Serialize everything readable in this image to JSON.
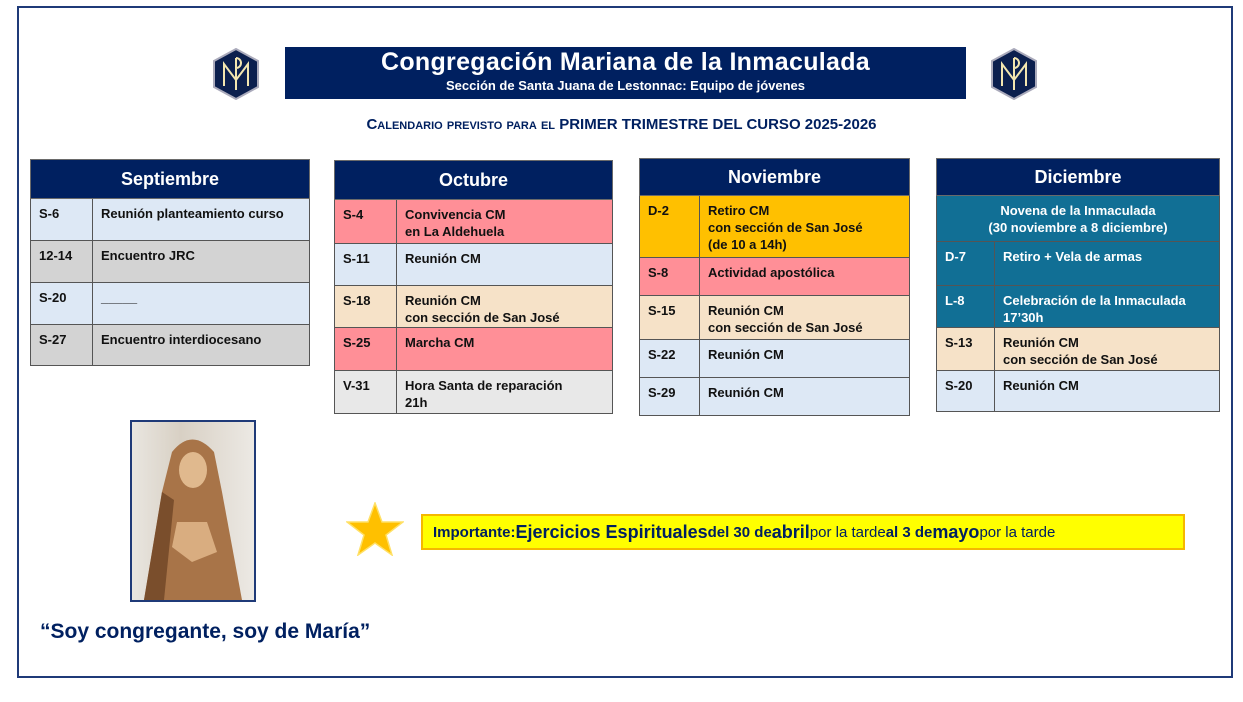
{
  "header": {
    "title": "Congregación Mariana de la Inmaculada",
    "subtitle": "Sección de Santa Juana de Lestonnac: Equipo de jóvenes",
    "calendar_prefix": "Calendario previsto para el",
    "calendar_main": "PRIMER TRIMESTRE DEL CURSO 2025-2026"
  },
  "colors": {
    "navy": "#002060",
    "teal": "#116f95",
    "pink": "#ff8f97",
    "peach": "#f6e2c8",
    "light_blue": "#dde8f5",
    "grey": "#d3d3d3",
    "orange": "#ffc000",
    "yellow": "#ffff00"
  },
  "months": [
    {
      "name": "Septiembre",
      "rows": [
        {
          "date": "S-6",
          "event": "Reunión planteamiento curso",
          "color": "lb"
        },
        {
          "date": "12-14",
          "event": "Encuentro JRC",
          "color": "gr"
        },
        {
          "date": "S-20",
          "event": "_____",
          "color": "lb"
        },
        {
          "date": "S-27",
          "event": "Encuentro interdiocesano",
          "color": "gr"
        }
      ]
    },
    {
      "name": "Octubre",
      "rows": [
        {
          "date": "S-4",
          "event": "Convivencia CM\nen  La Aldehuela",
          "color": "pk"
        },
        {
          "date": "S-11",
          "event": "Reunión CM",
          "color": "lb"
        },
        {
          "date": "S-18",
          "event": "Reunión CM\ncon sección de San José",
          "color": "pe"
        },
        {
          "date": "S-25",
          "event": "Marcha CM",
          "color": "pk"
        },
        {
          "date": "V-31",
          "event": "Hora Santa de reparación\n21h",
          "color": "lg"
        }
      ]
    },
    {
      "name": "Noviembre",
      "rows": [
        {
          "date": "D-2",
          "event": "Retiro CM\ncon sección de San José\n(de 10 a 14h)",
          "color": "or"
        },
        {
          "date": "S-8",
          "event": "Actividad apostólica",
          "color": "pk"
        },
        {
          "date": "S-15",
          "event": "Reunión CM\ncon sección de San José",
          "color": "pe"
        },
        {
          "date": "S-22",
          "event": "Reunión CM",
          "color": "lb"
        },
        {
          "date": "S-29",
          "event": "Reunión CM",
          "color": "lb"
        }
      ]
    },
    {
      "name": "Diciembre",
      "novena": "Novena de la Inmaculada\n(30 noviembre a 8 diciembre)",
      "rows": [
        {
          "date": "D-7",
          "event": "Retiro + Vela de armas",
          "color": "tl"
        },
        {
          "date": "L-8",
          "event": "Celebración de la Inmaculada\n17’30h",
          "color": "tl"
        },
        {
          "date": "S-13",
          "event": "Reunión CM\ncon sección de San José",
          "color": "pe"
        },
        {
          "date": "S-20",
          "event": "Reunión CM",
          "color": "lb"
        }
      ]
    }
  ],
  "important": {
    "label": "Importante:",
    "t1": "Ejercicios Espirituales",
    "t2": "del 30 de",
    "t3": "abril",
    "t4": "por la tarde",
    "t5": "al 3 de",
    "t6": "mayo",
    "t7": "por la tarde"
  },
  "quote": "“Soy congregante, soy de María”"
}
